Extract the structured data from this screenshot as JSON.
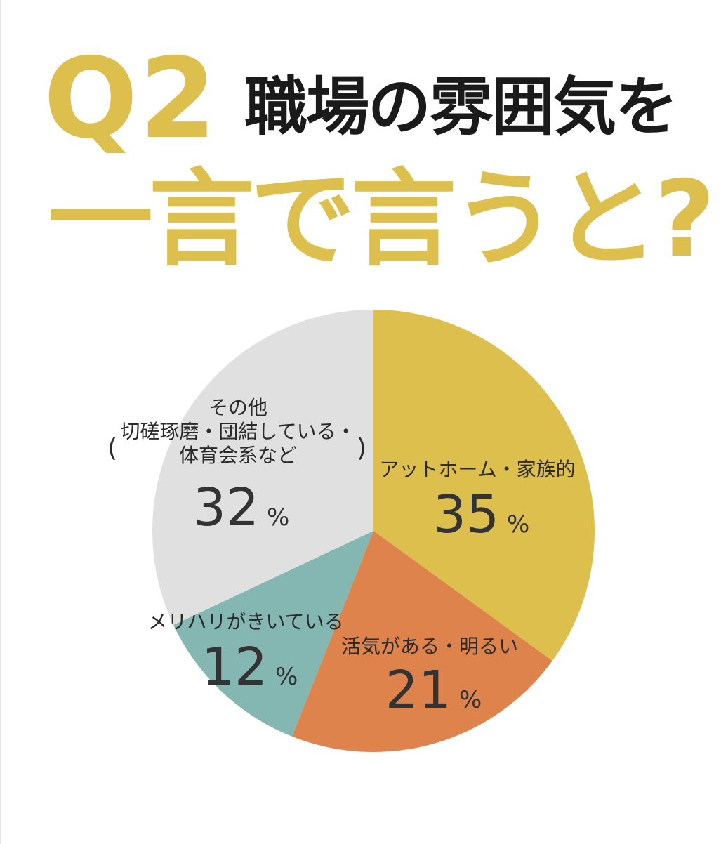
{
  "header": {
    "q_number": "Q2",
    "title_line1": "職場の雰囲気を",
    "title_line2": "一言で言うと?"
  },
  "chart_data": {
    "type": "pie",
    "colors": {
      "accent": "#ddbf4e",
      "title": "#1a1a1a"
    },
    "slices": [
      {
        "label_lines": [
          "アットホーム・家族的"
        ],
        "value": 35,
        "display": "35",
        "unit": "%",
        "color": "#ddbf4e"
      },
      {
        "label_lines": [
          "活気がある・明るい"
        ],
        "value": 21,
        "display": "21",
        "unit": "%",
        "color": "#de834b"
      },
      {
        "label_lines": [
          "メリハリがきいている"
        ],
        "value": 12,
        "display": "12",
        "unit": "%",
        "color": "#84b6b2"
      },
      {
        "label_lines": [
          "その他",
          "切磋琢磨・団結している・",
          "体育会系など"
        ],
        "paren_open": "(",
        "paren_close": ")",
        "value": 32,
        "display": "32",
        "unit": "%",
        "color": "#e0e0e0"
      }
    ]
  }
}
